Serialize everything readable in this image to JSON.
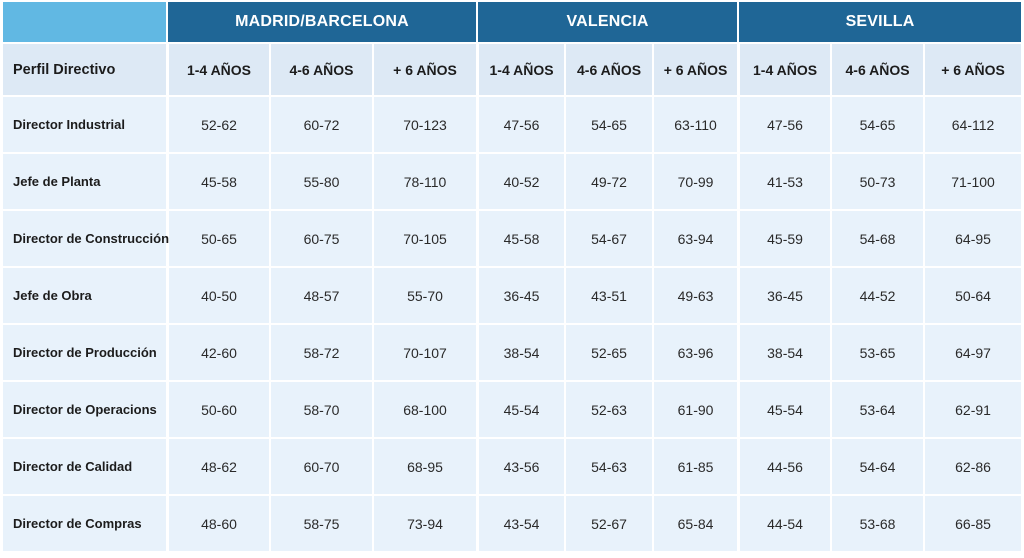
{
  "regions": [
    "MADRID/BARCELONA",
    "VALENCIA",
    "SEVILLA"
  ],
  "profile_header": "Perfil Directivo",
  "column_headers": [
    "1-4 AÑOS",
    "4-6 AÑOS",
    "+ 6 AÑOS",
    "1-4 AÑOS",
    "4-6 AÑOS",
    "+ 6 AÑOS",
    "1-4 AÑOS",
    "4-6 AÑOS",
    "+ 6 AÑOS"
  ],
  "rows": [
    {
      "profile": "Director Industrial",
      "values": [
        "52-62",
        "60-72",
        "70-123",
        "47-56",
        "54-65",
        "63-110",
        "47-56",
        "54-65",
        "64-112"
      ]
    },
    {
      "profile": "Jefe de Planta",
      "values": [
        "45-58",
        "55-80",
        "78-110",
        "40-52",
        "49-72",
        "70-99",
        "41-53",
        "50-73",
        "71-100"
      ]
    },
    {
      "profile": "Director de Construcción",
      "values": [
        "50-65",
        "60-75",
        "70-105",
        "45-58",
        "54-67",
        "63-94",
        "45-59",
        "54-68",
        "64-95"
      ]
    },
    {
      "profile": "Jefe de Obra",
      "values": [
        "40-50",
        "48-57",
        "55-70",
        "36-45",
        "43-51",
        "49-63",
        "36-45",
        "44-52",
        "50-64"
      ]
    },
    {
      "profile": "Director de Producción",
      "values": [
        "42-60",
        "58-72",
        "70-107",
        "38-54",
        "52-65",
        "63-96",
        "38-54",
        "53-65",
        "64-97"
      ]
    },
    {
      "profile": "Director de Operacions",
      "values": [
        "50-60",
        "58-70",
        "68-100",
        "45-54",
        "52-63",
        "61-90",
        "45-54",
        "53-64",
        "62-91"
      ]
    },
    {
      "profile": "Director de Calidad",
      "values": [
        "48-62",
        "60-70",
        "68-95",
        "43-56",
        "54-63",
        "61-85",
        "44-56",
        "54-64",
        "62-86"
      ]
    },
    {
      "profile": "Director de Compras",
      "values": [
        "48-60",
        "58-75",
        "73-94",
        "43-54",
        "52-67",
        "65-84",
        "44-54",
        "53-68",
        "66-85"
      ]
    }
  ],
  "colors": {
    "header_dark": "#1f6696",
    "header_corner": "#61b8e3",
    "subheader_bg": "#dde9f5",
    "cell_bg": "#e8f2fb"
  }
}
